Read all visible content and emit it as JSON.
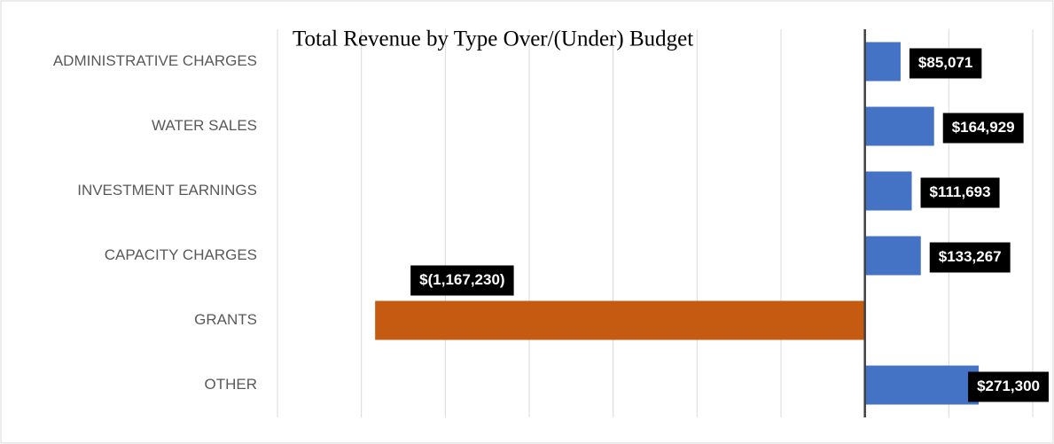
{
  "chart_data": {
    "type": "bar",
    "orientation": "horizontal",
    "title": "Total Revenue by Type Over/(Under) Budget",
    "categories": [
      "ADMINISTRATIVE CHARGES",
      "WATER SALES",
      "INVESTMENT EARNINGS",
      "CAPACITY CHARGES",
      "GRANTS",
      "OTHER"
    ],
    "values": [
      85071,
      164929,
      111693,
      133267,
      -1167230,
      271300
    ],
    "value_labels": [
      "$85,071",
      "$164,929",
      "$111,693",
      "$133,267",
      "$(1,167,230)",
      "$271,300"
    ],
    "colors": [
      "#4472c4",
      "#4472c4",
      "#4472c4",
      "#4472c4",
      "#c55a11",
      "#4472c4"
    ],
    "xlim": [
      -1400000,
      400000
    ],
    "xticks": [
      -1400000,
      -1200000,
      -1000000,
      -800000,
      -600000,
      -400000,
      -200000,
      0,
      200000,
      400000
    ],
    "grid": true
  }
}
